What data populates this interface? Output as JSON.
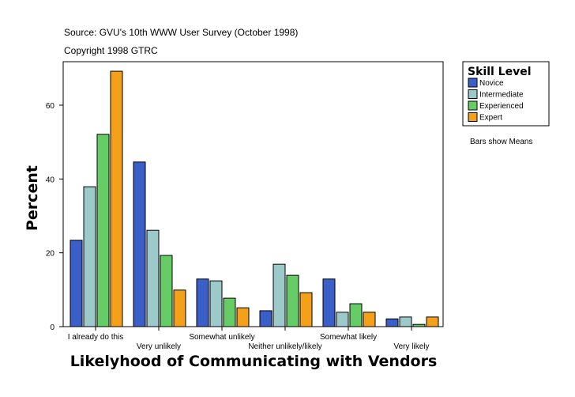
{
  "header": {
    "source": "Source: GVU's 10th WWW User Survey (October 1998)",
    "copyright": "Copyright 1998 GTRC"
  },
  "note": "Bars show Means",
  "chart_data": {
    "type": "bar",
    "xlabel": "Likelyhood of Communicating with Vendors",
    "ylabel": "Percent",
    "ylim": [
      0,
      72
    ],
    "yticks": [
      0,
      20,
      40,
      60
    ],
    "categories": [
      "I already do this",
      "Very unlikely",
      "Somewhat unlikely",
      "Neither unlikely/likely",
      "Somewhat likely",
      "Very likely"
    ],
    "legend_title": "Skill Level",
    "legend_position": "right",
    "grid": false,
    "series": [
      {
        "name": "Novice",
        "color": "#3a5fc8",
        "values": [
          23.4,
          44.6,
          12.9,
          4.3,
          12.9,
          2.1
        ]
      },
      {
        "name": "Intermediate",
        "color": "#9ccaca",
        "values": [
          37.9,
          26.1,
          12.4,
          16.9,
          3.9,
          2.6
        ]
      },
      {
        "name": "Experienced",
        "color": "#66cc66",
        "values": [
          52.1,
          19.3,
          7.7,
          13.9,
          6.2,
          0.6
        ]
      },
      {
        "name": "Expert",
        "color": "#f5a01a",
        "values": [
          69.2,
          9.9,
          5.1,
          9.2,
          3.9,
          2.6
        ]
      }
    ]
  }
}
